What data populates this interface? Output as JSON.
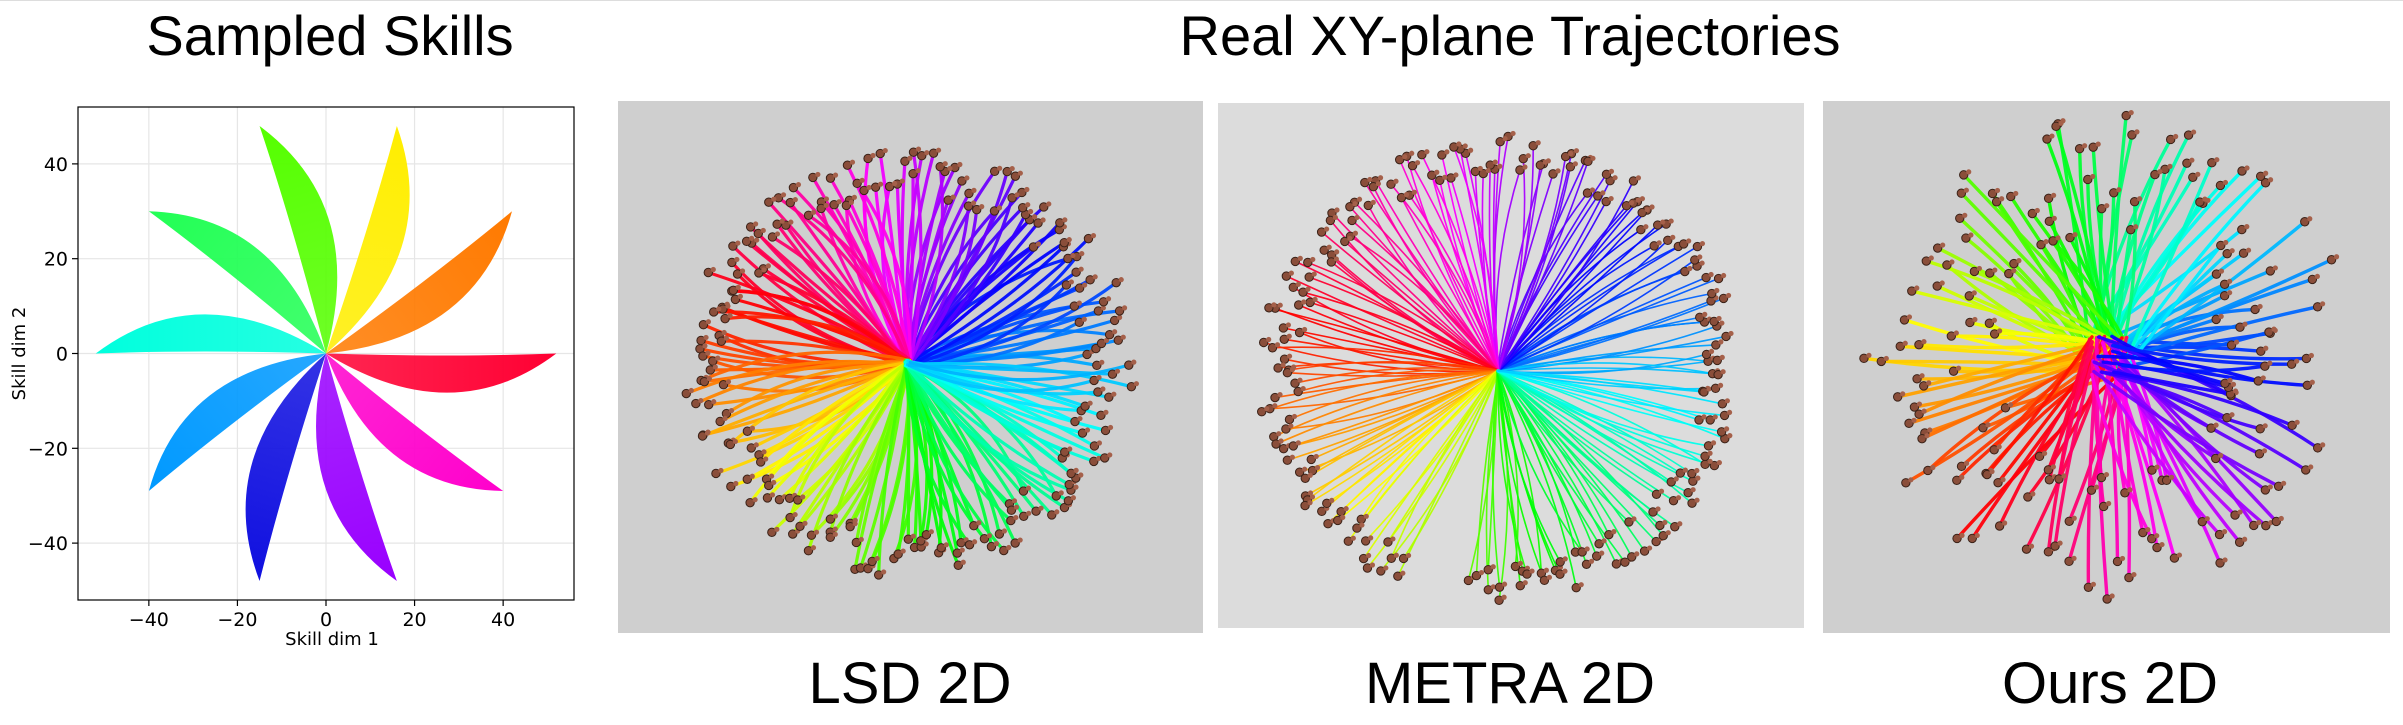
{
  "headings": {
    "left": "Sampled Skills",
    "right": "Real XY-plane Trajectories"
  },
  "captions": {
    "lsd": "LSD 2D",
    "metra": "METRA 2D",
    "ours": "Ours 2D"
  },
  "chart_data": {
    "type": "area",
    "title": "Sampled Skills",
    "xlabel": "Skill dim 1",
    "ylabel": "Skill dim 2",
    "xlim": [
      -56,
      56
    ],
    "ylim": [
      -52,
      52
    ],
    "xticks": [
      -40,
      -20,
      0,
      20,
      40
    ],
    "yticks": [
      -40,
      -20,
      0,
      20,
      40
    ],
    "grid": true,
    "petals": [
      {
        "color": "#ff0033",
        "x": 52,
        "y": 0
      },
      {
        "color": "#ff7a00",
        "x": 42,
        "y": 30
      },
      {
        "color": "#ffee00",
        "x": 16,
        "y": 48
      },
      {
        "color": "#55ff00",
        "x": -15,
        "y": 48
      },
      {
        "color": "#22ff55",
        "x": -40,
        "y": 30
      },
      {
        "color": "#00ffdd",
        "x": -52,
        "y": 0
      },
      {
        "color": "#0099ff",
        "x": -40,
        "y": -29
      },
      {
        "color": "#1010e0",
        "x": -15,
        "y": -48
      },
      {
        "color": "#9900ff",
        "x": 16,
        "y": -48
      },
      {
        "color": "#ff00cc",
        "x": 40,
        "y": -29
      }
    ]
  },
  "trajectory_panels": {
    "lsd": {
      "background": "#cfcfcf"
    },
    "metra": {
      "background": "#dcdcdc"
    },
    "ours": {
      "background": "#cfcfcf"
    }
  }
}
